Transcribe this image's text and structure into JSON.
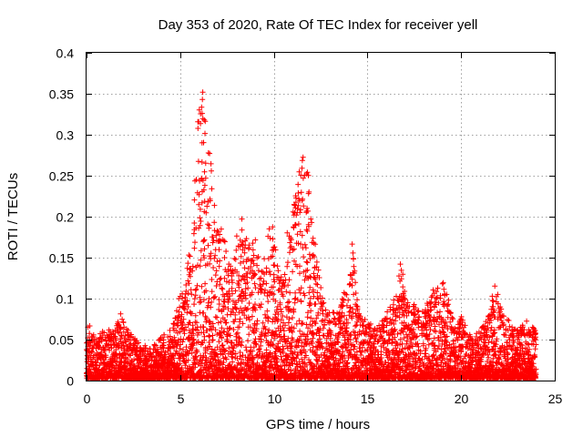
{
  "chart_data": {
    "type": "scatter",
    "title": "Day 353 of 2020, Rate Of TEC Index for receiver yell",
    "xlabel": "GPS time / hours",
    "ylabel": "ROTI / TECUs",
    "xlim": [
      0,
      25
    ],
    "ylim": [
      0,
      0.4
    ],
    "xticks": [
      0,
      5,
      10,
      15,
      20,
      25
    ],
    "xtick_labels": [
      "0",
      "5",
      "10",
      "15",
      "20",
      "25"
    ],
    "yticks": [
      0,
      0.05,
      0.1,
      0.15,
      0.2,
      0.25,
      0.3,
      0.35,
      0.4
    ],
    "ytick_labels": [
      "0",
      "0.05",
      "0.1",
      "0.15",
      "0.2",
      "0.25",
      "0.3",
      "0.35",
      "0.4"
    ],
    "grid": true,
    "marker": "+",
    "color": "#ff0000",
    "envelope": {
      "x": [
        0,
        0.1,
        0.5,
        1.0,
        1.5,
        1.8,
        2.0,
        2.5,
        3.0,
        3.5,
        4.0,
        4.5,
        4.8,
        5.0,
        5.2,
        5.5,
        5.7,
        5.9,
        6.1,
        6.3,
        6.5,
        6.7,
        6.9,
        7.1,
        7.3,
        7.5,
        7.8,
        8.0,
        8.3,
        8.6,
        8.8,
        9.0,
        9.3,
        9.6,
        9.9,
        10.2,
        10.5,
        10.8,
        11.0,
        11.2,
        11.4,
        11.6,
        11.8,
        12.0,
        12.3,
        12.6,
        13.0,
        13.5,
        14.0,
        14.2,
        14.5,
        15.0,
        15.5,
        16.0,
        16.5,
        16.8,
        17.0,
        17.5,
        18.0,
        18.5,
        19.0,
        19.3,
        19.6,
        19.8,
        20.0,
        20.3,
        20.6,
        21.0,
        21.5,
        21.8,
        22.0,
        22.3,
        22.6,
        23.0,
        23.5,
        24.0
      ],
      "y": [
        0.05,
        0.07,
        0.05,
        0.06,
        0.06,
        0.08,
        0.07,
        0.05,
        0.04,
        0.04,
        0.05,
        0.06,
        0.08,
        0.12,
        0.1,
        0.16,
        0.2,
        0.3,
        0.36,
        0.34,
        0.3,
        0.26,
        0.2,
        0.18,
        0.2,
        0.15,
        0.13,
        0.18,
        0.2,
        0.17,
        0.16,
        0.18,
        0.13,
        0.17,
        0.2,
        0.14,
        0.12,
        0.2,
        0.2,
        0.24,
        0.26,
        0.28,
        0.26,
        0.2,
        0.15,
        0.1,
        0.08,
        0.09,
        0.12,
        0.17,
        0.09,
        0.07,
        0.06,
        0.08,
        0.1,
        0.15,
        0.1,
        0.09,
        0.08,
        0.11,
        0.12,
        0.1,
        0.07,
        0.06,
        0.08,
        0.06,
        0.05,
        0.06,
        0.08,
        0.12,
        0.1,
        0.08,
        0.07,
        0.06,
        0.07,
        0.06
      ]
    },
    "floor": 0.003,
    "x_end": 24.0
  }
}
